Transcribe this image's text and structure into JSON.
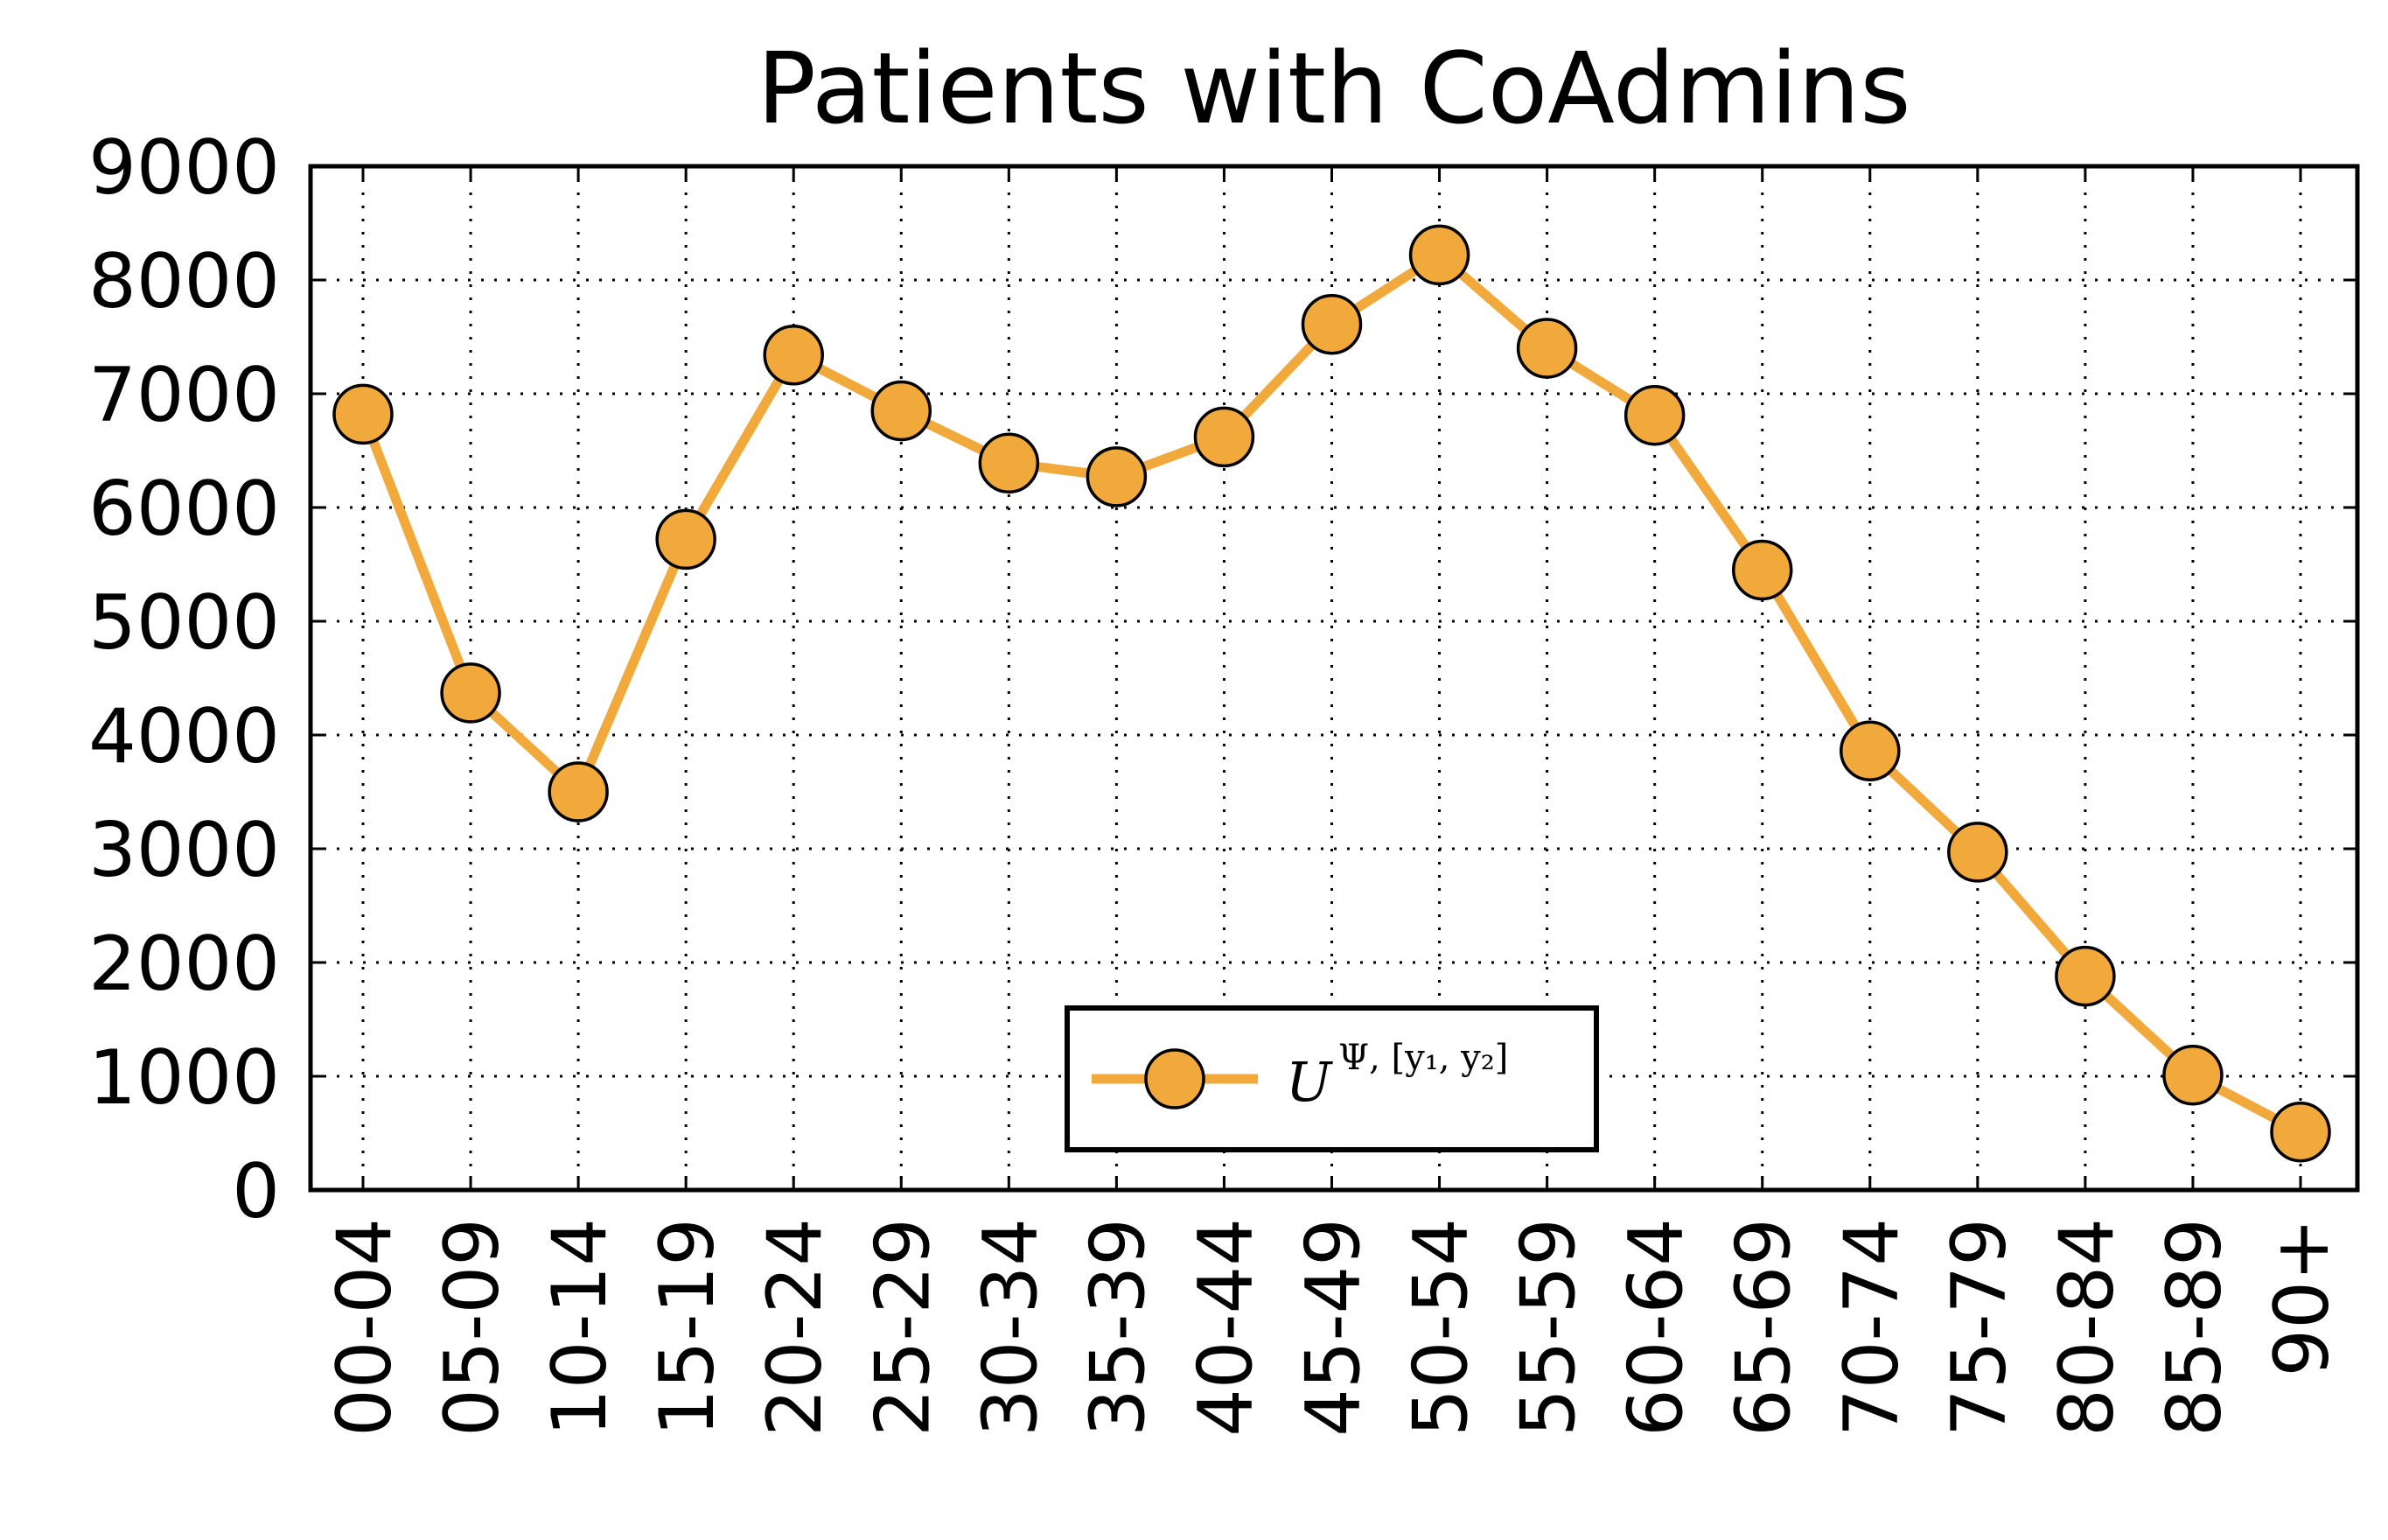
{
  "chart_data": {
    "type": "line",
    "title": "Patients with CoAdmins",
    "xlabel": "",
    "ylabel": "",
    "categories": [
      "00-04",
      "05-09",
      "10-14",
      "15-19",
      "20-24",
      "25-29",
      "30-34",
      "35-39",
      "40-44",
      "45-49",
      "50-54",
      "55-59",
      "60-64",
      "65-69",
      "70-74",
      "75-79",
      "80-84",
      "85-89",
      "90+"
    ],
    "y_ticks": [
      "0",
      "1000",
      "2000",
      "3000",
      "4000",
      "5000",
      "6000",
      "7000",
      "8000",
      "9000"
    ],
    "ylim": [
      0,
      9000
    ],
    "grid": true,
    "legend_position": "lower-center",
    "series": [
      {
        "name": "U^{Ψ, [y1, y2]}",
        "legend_main": "U",
        "legend_sup": "Ψ, [y₁, y₂]",
        "color": "#f2a93b",
        "marker": "circle",
        "values": [
          6820,
          4370,
          3500,
          5720,
          7340,
          6850,
          6390,
          6270,
          6620,
          7610,
          8220,
          7400,
          6810,
          5450,
          3860,
          2970,
          1880,
          1010,
          510
        ]
      }
    ]
  }
}
